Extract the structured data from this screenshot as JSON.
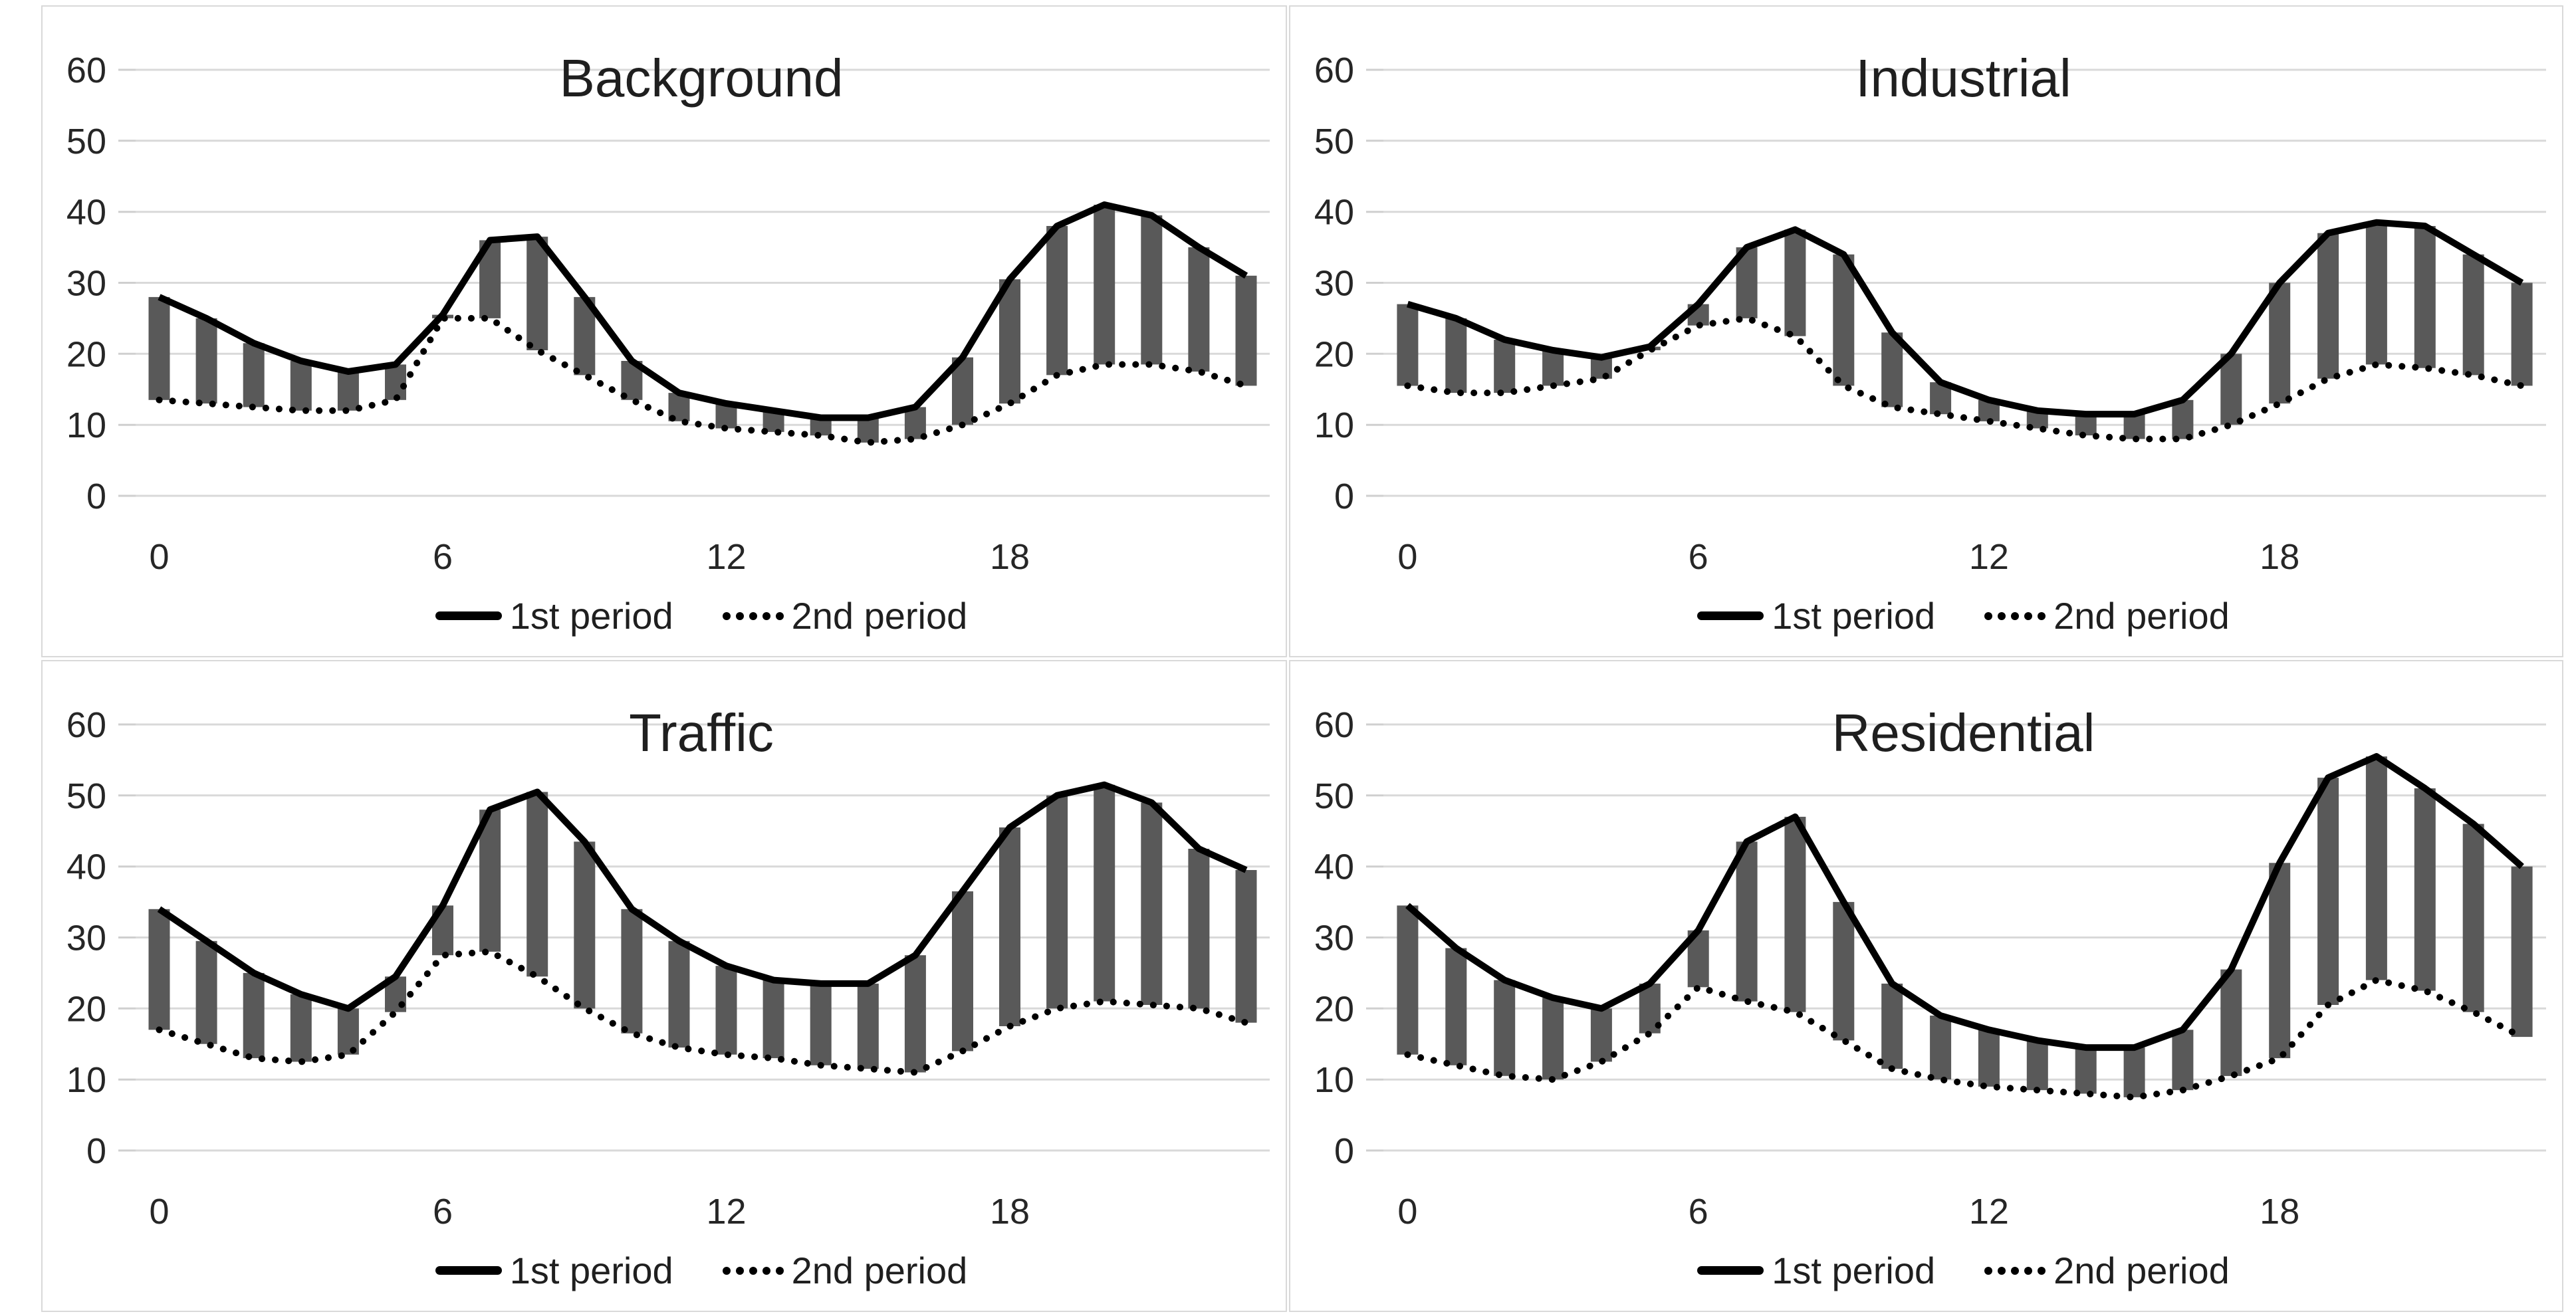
{
  "figure": {
    "background": "#ffffff",
    "panel_border": "#d9d9d9"
  },
  "colors": {
    "bar": "#595959",
    "solid_line": "#000000",
    "dotted_line": "#000000",
    "gridline": "#d9d9d9",
    "tick_stub": "#cfcfcf",
    "text": "#262626"
  },
  "axes": {
    "y_ticks": [
      0,
      10,
      20,
      30,
      40,
      50,
      60
    ],
    "x_ticks": [
      0,
      6,
      12,
      18
    ],
    "y_max": 60
  },
  "chart_data": [
    {
      "type": "line",
      "title": "Background",
      "xlabel": "",
      "ylabel": "",
      "ylim": [
        0,
        60
      ],
      "x": [
        0,
        1,
        2,
        3,
        4,
        5,
        6,
        7,
        8,
        9,
        10,
        11,
        12,
        13,
        14,
        15,
        16,
        17,
        18,
        19,
        20,
        21,
        22,
        23
      ],
      "series": [
        {
          "name": "1st period",
          "style": "solid",
          "values": [
            28,
            25,
            21.5,
            19,
            17.5,
            18.5,
            25.5,
            36,
            36.5,
            28,
            19,
            14.5,
            13,
            12,
            11,
            11,
            12.5,
            19.5,
            30.5,
            38,
            41,
            39.5,
            35,
            31
          ]
        },
        {
          "name": "2nd period",
          "style": "dotted",
          "values": [
            13.5,
            13,
            12.5,
            12,
            12,
            13.5,
            25,
            25,
            20.5,
            17,
            13.5,
            10.5,
            9.5,
            9,
            8.5,
            7.5,
            8,
            10,
            13,
            17,
            18.5,
            18.5,
            17.5,
            15.5
          ]
        }
      ],
      "bars_between_series": true,
      "legend_position": "bottom"
    },
    {
      "type": "line",
      "title": "Industrial",
      "xlabel": "",
      "ylabel": "",
      "ylim": [
        0,
        60
      ],
      "x": [
        0,
        1,
        2,
        3,
        4,
        5,
        6,
        7,
        8,
        9,
        10,
        11,
        12,
        13,
        14,
        15,
        16,
        17,
        18,
        19,
        20,
        21,
        22,
        23
      ],
      "series": [
        {
          "name": "1st period",
          "style": "solid",
          "values": [
            27,
            25,
            22,
            20.5,
            19.5,
            21,
            27,
            35,
            37.5,
            34,
            23,
            16,
            13.5,
            12,
            11.5,
            11.5,
            13.5,
            20,
            30,
            37,
            38.5,
            38,
            34,
            30
          ]
        },
        {
          "name": "2nd period",
          "style": "dotted",
          "values": [
            15.5,
            14.5,
            14.5,
            15.5,
            16.5,
            20.5,
            24,
            25,
            22.5,
            15.5,
            12.5,
            11.5,
            10.5,
            9.5,
            8.5,
            8,
            8,
            10,
            13,
            16.5,
            18.5,
            18,
            17,
            15.5
          ]
        }
      ],
      "bars_between_series": true,
      "legend_position": "bottom"
    },
    {
      "type": "line",
      "title": "Traffic",
      "xlabel": "",
      "ylabel": "",
      "ylim": [
        0,
        60
      ],
      "x": [
        0,
        1,
        2,
        3,
        4,
        5,
        6,
        7,
        8,
        9,
        10,
        11,
        12,
        13,
        14,
        15,
        16,
        17,
        18,
        19,
        20,
        21,
        22,
        23
      ],
      "series": [
        {
          "name": "1st period",
          "style": "solid",
          "values": [
            34,
            29.5,
            25,
            22,
            20,
            24.5,
            34.5,
            48,
            50.5,
            43.5,
            34,
            29.5,
            26,
            24,
            23.5,
            23.5,
            27.5,
            36.5,
            45.5,
            50,
            51.5,
            49,
            42.5,
            39.5
          ]
        },
        {
          "name": "2nd period",
          "style": "dotted",
          "values": [
            17,
            15,
            13,
            12.5,
            13.5,
            19.5,
            27.5,
            28,
            24.5,
            20,
            16.5,
            14.5,
            13.5,
            13,
            12,
            11.5,
            11,
            14,
            17.5,
            20,
            21,
            20.5,
            20,
            18
          ]
        }
      ],
      "bars_between_series": true,
      "legend_position": "bottom"
    },
    {
      "type": "line",
      "title": "Residential",
      "xlabel": "",
      "ylabel": "",
      "ylim": [
        0,
        60
      ],
      "x": [
        0,
        1,
        2,
        3,
        4,
        5,
        6,
        7,
        8,
        9,
        10,
        11,
        12,
        13,
        14,
        15,
        16,
        17,
        18,
        19,
        20,
        21,
        22,
        23
      ],
      "series": [
        {
          "name": "1st period",
          "style": "solid",
          "values": [
            34.5,
            28.5,
            24,
            21.5,
            20,
            23.5,
            31,
            43.5,
            47,
            35,
            23.5,
            19,
            17,
            15.5,
            14.5,
            14.5,
            17,
            25.5,
            40.5,
            52.5,
            55.5,
            51,
            46,
            40
          ]
        },
        {
          "name": "2nd period",
          "style": "dotted",
          "values": [
            13.5,
            12,
            10.5,
            10,
            12.5,
            16.5,
            23,
            21,
            19.5,
            15.5,
            11.5,
            10,
            9,
            8.5,
            8,
            7.5,
            8.5,
            10.5,
            13,
            20.5,
            24,
            22.5,
            19.5,
            16
          ]
        }
      ],
      "bars_between_series": true,
      "legend_position": "bottom"
    }
  ]
}
